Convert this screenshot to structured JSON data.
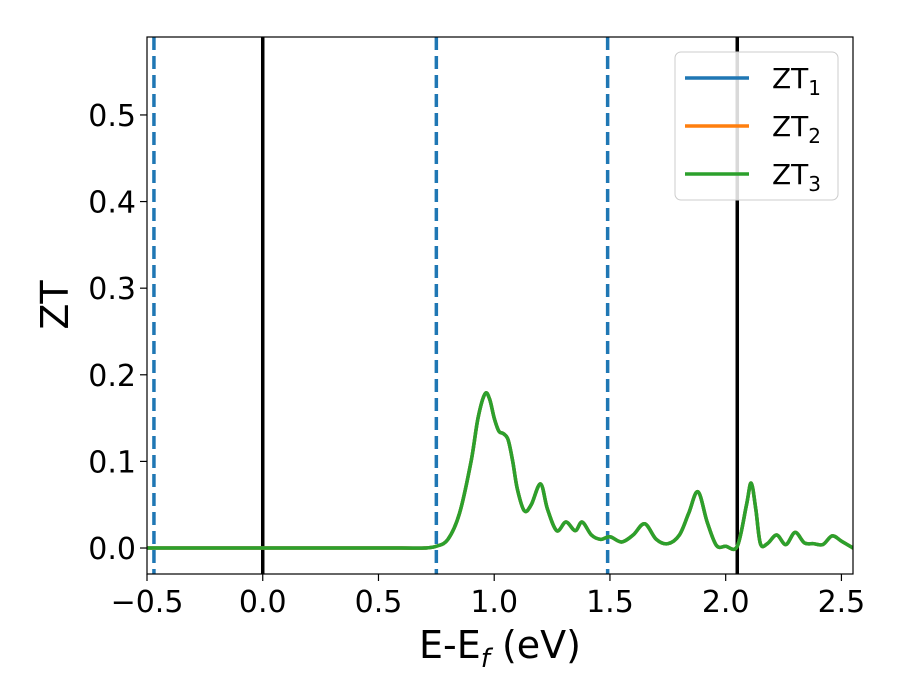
{
  "chart_data": {
    "type": "line",
    "title": "",
    "xlabel": {
      "main": "E-E",
      "sub": "f",
      "unit": " (eV)"
    },
    "ylabel": "ZT",
    "xlim": [
      -0.5,
      2.55
    ],
    "ylim": [
      -0.03,
      0.59
    ],
    "xticks": [
      -0.5,
      0.0,
      0.5,
      1.0,
      1.5,
      2.0,
      2.5
    ],
    "xtick_labels": [
      "−0.5",
      "0.0",
      "0.5",
      "1.0",
      "1.5",
      "2.0",
      "2.5"
    ],
    "yticks": [
      0.0,
      0.1,
      0.2,
      0.3,
      0.4,
      0.5
    ],
    "ytick_labels": [
      "0.0",
      "0.1",
      "0.2",
      "0.3",
      "0.4",
      "0.5"
    ],
    "grid": false,
    "legend_position": "top-right",
    "vertical_lines": [
      {
        "x": -0.47,
        "style": "dashed",
        "color": "#1f77b4"
      },
      {
        "x": 0.0,
        "style": "solid",
        "color": "#000000"
      },
      {
        "x": 0.75,
        "style": "dashed",
        "color": "#1f77b4"
      },
      {
        "x": 1.49,
        "style": "dashed",
        "color": "#1f77b4"
      },
      {
        "x": 2.05,
        "style": "solid",
        "color": "#000000"
      }
    ],
    "x": [
      -0.5,
      -0.4,
      -0.2,
      0.0,
      0.2,
      0.4,
      0.6,
      0.7,
      0.75,
      0.8,
      0.85,
      0.9,
      0.93,
      0.96,
      0.98,
      1.0,
      1.02,
      1.04,
      1.06,
      1.08,
      1.1,
      1.13,
      1.16,
      1.2,
      1.23,
      1.27,
      1.31,
      1.35,
      1.38,
      1.42,
      1.46,
      1.5,
      1.55,
      1.6,
      1.65,
      1.7,
      1.75,
      1.8,
      1.84,
      1.88,
      1.92,
      1.96,
      2.0,
      2.05,
      2.09,
      2.11,
      2.13,
      2.15,
      2.18,
      2.22,
      2.26,
      2.3,
      2.34,
      2.38,
      2.42,
      2.46,
      2.5,
      2.55
    ],
    "series": [
      {
        "name": "ZT",
        "name_sub": "1",
        "color": "#1f77b4",
        "values": [
          0.0,
          0.0,
          0.0,
          0.0,
          0.0,
          0.0,
          0.0,
          0.0,
          0.002,
          0.01,
          0.04,
          0.1,
          0.15,
          0.178,
          0.172,
          0.15,
          0.135,
          0.132,
          0.125,
          0.1,
          0.068,
          0.043,
          0.05,
          0.074,
          0.045,
          0.02,
          0.03,
          0.02,
          0.03,
          0.015,
          0.01,
          0.013,
          0.007,
          0.015,
          0.028,
          0.01,
          0.005,
          0.015,
          0.04,
          0.065,
          0.03,
          0.003,
          0.002,
          0.002,
          0.05,
          0.075,
          0.045,
          0.005,
          0.005,
          0.015,
          0.004,
          0.018,
          0.006,
          0.005,
          0.004,
          0.014,
          0.008,
          0.0
        ]
      },
      {
        "name": "ZT",
        "name_sub": "2",
        "color": "#ff7f0e",
        "values": [
          0.0,
          0.0,
          0.0,
          0.0,
          0.0,
          0.0,
          0.0,
          0.0,
          0.002,
          0.01,
          0.04,
          0.1,
          0.15,
          0.178,
          0.172,
          0.15,
          0.135,
          0.132,
          0.125,
          0.1,
          0.068,
          0.043,
          0.05,
          0.074,
          0.045,
          0.02,
          0.03,
          0.02,
          0.03,
          0.015,
          0.01,
          0.013,
          0.007,
          0.015,
          0.028,
          0.01,
          0.005,
          0.015,
          0.04,
          0.065,
          0.03,
          0.003,
          0.002,
          0.002,
          0.05,
          0.075,
          0.045,
          0.005,
          0.005,
          0.015,
          0.004,
          0.018,
          0.006,
          0.005,
          0.004,
          0.014,
          0.008,
          0.0
        ]
      },
      {
        "name": "ZT",
        "name_sub": "3",
        "color": "#2ca02c",
        "values": [
          0.0,
          0.0,
          0.0,
          0.0,
          0.0,
          0.0,
          0.0,
          0.0,
          0.002,
          0.01,
          0.04,
          0.1,
          0.15,
          0.178,
          0.172,
          0.15,
          0.135,
          0.132,
          0.125,
          0.1,
          0.068,
          0.043,
          0.05,
          0.074,
          0.045,
          0.02,
          0.03,
          0.02,
          0.03,
          0.015,
          0.01,
          0.013,
          0.007,
          0.015,
          0.028,
          0.01,
          0.005,
          0.015,
          0.04,
          0.065,
          0.03,
          0.003,
          0.002,
          0.002,
          0.05,
          0.075,
          0.045,
          0.005,
          0.005,
          0.015,
          0.004,
          0.018,
          0.006,
          0.005,
          0.004,
          0.014,
          0.008,
          0.0
        ]
      }
    ]
  }
}
